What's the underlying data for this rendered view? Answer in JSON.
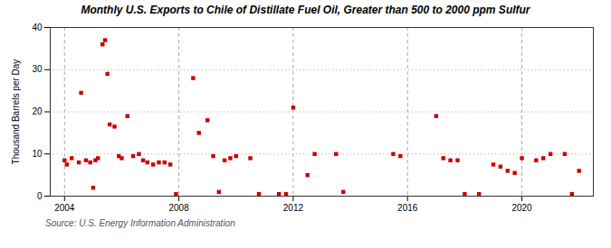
{
  "chart_data": {
    "type": "scatter",
    "title": "Monthly U.S. Exports to Chile of Distillate Fuel Oil, Greater than 500 to 2000 ppm Sulfur",
    "ylabel": "Thousand Barrels per Day",
    "annotations": [
      "Source: U.S. Energy Information Administration"
    ],
    "color": "#cc0000",
    "marker": "square",
    "grid": true,
    "xlim": [
      2003.5,
      2022.5
    ],
    "ylim": [
      0,
      40
    ],
    "xticks": [
      2004,
      2008,
      2012,
      2016,
      2020
    ],
    "yticks": [
      0,
      10,
      20,
      30,
      40
    ],
    "x": [
      2004.0,
      2004.08,
      2004.25,
      2004.5,
      2004.58,
      2004.75,
      2004.9,
      2005.0,
      2005.08,
      2005.17,
      2005.33,
      2005.42,
      2005.5,
      2005.58,
      2005.75,
      2005.9,
      2006.0,
      2006.2,
      2006.4,
      2006.6,
      2006.75,
      2006.9,
      2007.1,
      2007.3,
      2007.5,
      2007.7,
      2007.9,
      2008.5,
      2008.7,
      2009.0,
      2009.2,
      2009.4,
      2009.6,
      2009.8,
      2010.0,
      2010.5,
      2010.8,
      2011.5,
      2011.75,
      2012.0,
      2012.5,
      2012.75,
      2013.5,
      2013.75,
      2015.5,
      2015.75,
      2017.0,
      2017.25,
      2017.5,
      2017.75,
      2018.0,
      2018.5,
      2019.0,
      2019.25,
      2019.5,
      2019.75,
      2020.0,
      2020.5,
      2020.75,
      2021.0,
      2021.5,
      2021.75,
      2022.0
    ],
    "values": [
      8.5,
      7.5,
      9.0,
      8.0,
      24.5,
      8.5,
      8.0,
      2.0,
      8.5,
      9.0,
      36.0,
      37.0,
      29.0,
      17.0,
      16.5,
      9.5,
      9.0,
      19.0,
      9.5,
      10.0,
      8.5,
      8.0,
      7.5,
      8.0,
      8.0,
      7.5,
      0.5,
      28.0,
      15.0,
      18.0,
      9.5,
      1.0,
      8.5,
      9.0,
      9.5,
      9.0,
      0.5,
      0.5,
      0.5,
      21.0,
      5.0,
      10.0,
      10.0,
      1.0,
      10.0,
      9.5,
      19.0,
      9.0,
      8.5,
      8.5,
      0.5,
      0.5,
      7.5,
      7.0,
      6.0,
      5.5,
      9.0,
      8.5,
      9.0,
      10.0,
      10.0,
      0.5,
      6.0
    ]
  }
}
